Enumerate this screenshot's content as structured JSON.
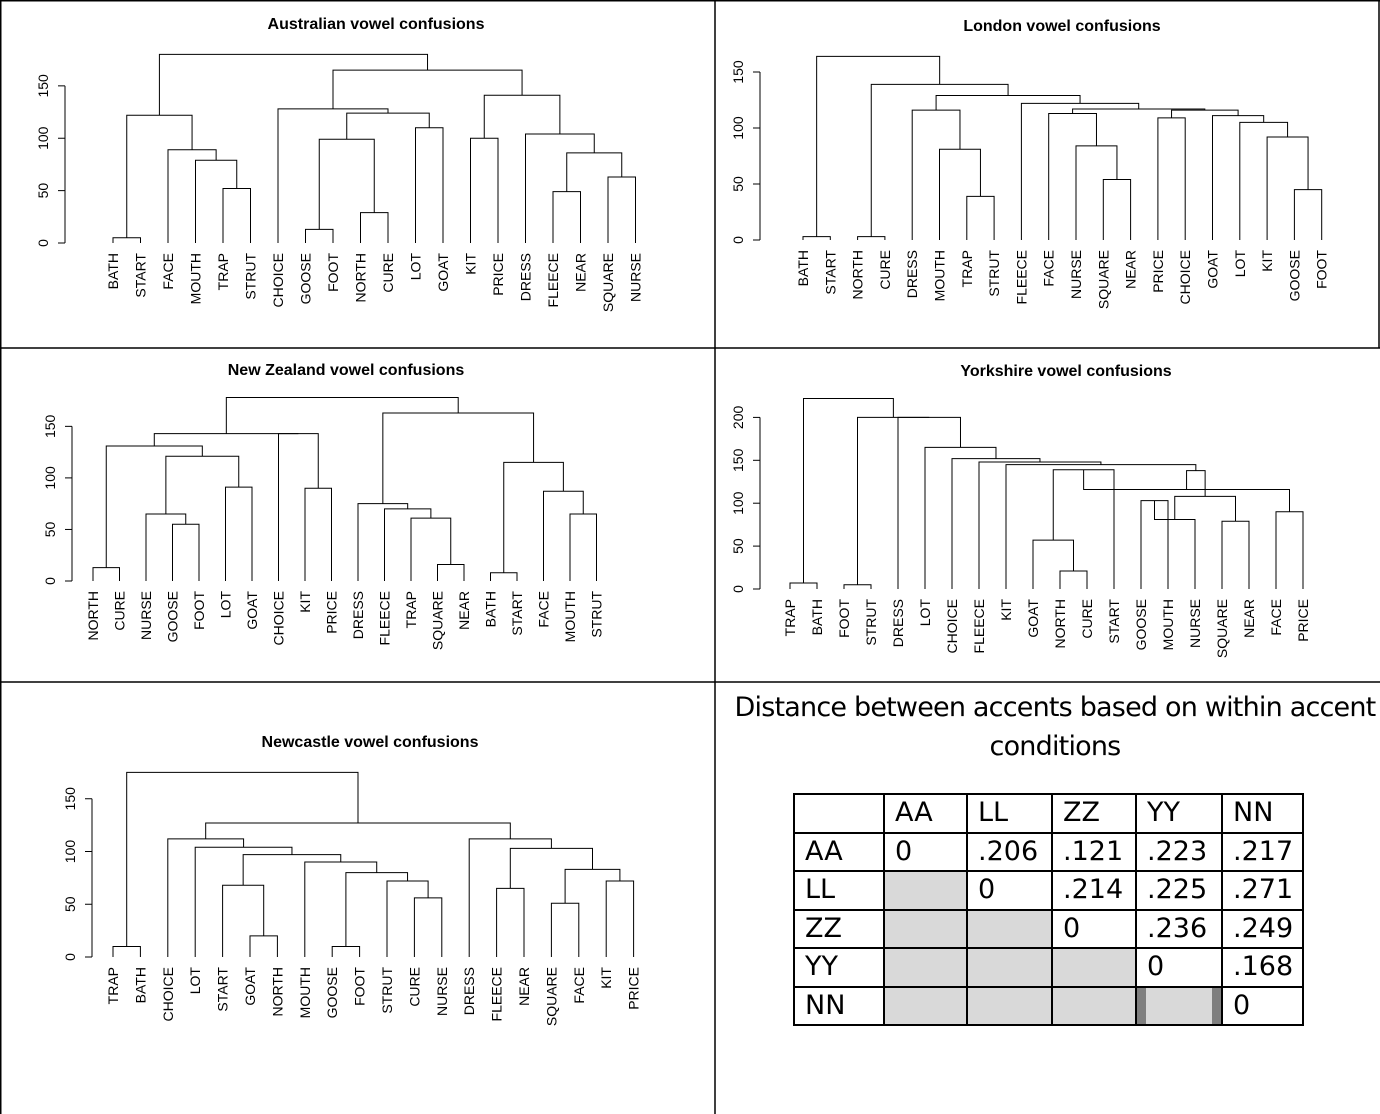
{
  "chart_data": [
    {
      "type": "dendrogram",
      "title": "Australian vowel confusions",
      "yticks": [
        0,
        50,
        100,
        150
      ],
      "ylim": [
        0,
        180
      ],
      "leaves": [
        "BATH",
        "START",
        "FACE",
        "MOUTH",
        "TRAP",
        "STRUT",
        "CHOICE",
        "GOOSE",
        "FOOT",
        "NORTH",
        "CURE",
        "LOT",
        "GOAT",
        "KIT",
        "PRICE",
        "DRESS",
        "FLEECE",
        "NEAR",
        "SQUARE",
        "NURSE"
      ],
      "merges": [
        [
          0,
          1,
          5
        ],
        [
          4,
          5,
          52
        ],
        [
          3,
          21,
          79
        ],
        [
          2,
          22,
          89
        ],
        [
          20,
          23,
          122
        ],
        [
          7,
          8,
          13
        ],
        [
          9,
          10,
          29
        ],
        [
          25,
          26,
          99
        ],
        [
          11,
          12,
          110
        ],
        [
          27,
          28,
          124
        ],
        [
          6,
          29,
          128
        ],
        [
          13,
          14,
          100
        ],
        [
          17,
          16,
          49
        ],
        [
          18,
          19,
          63
        ],
        [
          32,
          33,
          86
        ],
        [
          15,
          34,
          104
        ],
        [
          31,
          35,
          141
        ],
        [
          30,
          36,
          165
        ],
        [
          24,
          37,
          180
        ]
      ]
    },
    {
      "type": "dendrogram",
      "title": "London vowel confusions",
      "yticks": [
        0,
        50,
        100,
        150
      ],
      "ylim": [
        0,
        165
      ],
      "leaves": [
        "BATH",
        "START",
        "NORTH",
        "CURE",
        "DRESS",
        "MOUTH",
        "TRAP",
        "STRUT",
        "FLEECE",
        "FACE",
        "NURSE",
        "SQUARE",
        "NEAR",
        "PRICE",
        "CHOICE",
        "GOAT",
        "LOT",
        "KIT",
        "GOOSE",
        "FOOT"
      ],
      "merges": [
        [
          0,
          1,
          3
        ],
        [
          2,
          3,
          3
        ],
        [
          6,
          7,
          39
        ],
        [
          5,
          22,
          81
        ],
        [
          4,
          23,
          116
        ],
        [
          11,
          12,
          54
        ],
        [
          10,
          25,
          84
        ],
        [
          9,
          26,
          113
        ],
        [
          18,
          19,
          45
        ],
        [
          17,
          28,
          92
        ],
        [
          16,
          29,
          105
        ],
        [
          15,
          30,
          111
        ],
        [
          13,
          14,
          109
        ],
        [
          32,
          31,
          116
        ],
        [
          27,
          33,
          117
        ],
        [
          34,
          8,
          122
        ],
        [
          24,
          35,
          129
        ],
        [
          21,
          36,
          139
        ],
        [
          20,
          37,
          164
        ]
      ]
    },
    {
      "type": "dendrogram",
      "title": "New Zealand vowel confusions",
      "yticks": [
        0,
        50,
        100,
        150
      ],
      "ylim": [
        0,
        180
      ],
      "leaves": [
        "NORTH",
        "CURE",
        "NURSE",
        "GOOSE",
        "FOOT",
        "LOT",
        "GOAT",
        "CHOICE",
        "KIT",
        "PRICE",
        "DRESS",
        "FLEECE",
        "TRAP",
        "SQUARE",
        "NEAR",
        "BATH",
        "START",
        "FACE",
        "MOUTH",
        "STRUT"
      ],
      "merges": [
        [
          0,
          1,
          13
        ],
        [
          3,
          4,
          55
        ],
        [
          2,
          21,
          65
        ],
        [
          5,
          6,
          91
        ],
        [
          22,
          23,
          121
        ],
        [
          20,
          24,
          131
        ],
        [
          8,
          9,
          90
        ],
        [
          7,
          26,
          143
        ],
        [
          25,
          27,
          143
        ],
        [
          13,
          14,
          16
        ],
        [
          12,
          29,
          61
        ],
        [
          11,
          30,
          70
        ],
        [
          10,
          31,
          75
        ],
        [
          15,
          16,
          8
        ],
        [
          18,
          19,
          65
        ],
        [
          17,
          34,
          87
        ],
        [
          33,
          35,
          115
        ],
        [
          32,
          36,
          163
        ],
        [
          28,
          37,
          178
        ]
      ]
    },
    {
      "type": "dendrogram",
      "title": "Yorkshire vowel confusions",
      "yticks": [
        0,
        50,
        100,
        150,
        200
      ],
      "ylim": [
        0,
        225
      ],
      "leaves": [
        "TRAP",
        "BATH",
        "FOOT",
        "STRUT",
        "DRESS",
        "LOT",
        "CHOICE",
        "FLEECE",
        "KIT",
        "GOAT",
        "NORTH",
        "CURE",
        "START",
        "GOOSE",
        "MOUTH",
        "NURSE",
        "SQUARE",
        "NEAR",
        "FACE",
        "PRICE"
      ],
      "merges": [
        [
          0,
          1,
          7
        ],
        [
          2,
          3,
          5
        ],
        [
          10,
          11,
          21
        ],
        [
          9,
          22,
          57
        ],
        [
          23,
          12,
          139
        ],
        [
          13,
          14,
          103
        ],
        [
          16,
          17,
          79
        ],
        [
          15,
          25,
          81
        ],
        [
          18,
          19,
          90
        ],
        [
          26,
          27,
          108
        ],
        [
          24,
          28,
          116
        ],
        [
          29,
          30,
          138
        ],
        [
          31,
          8,
          145
        ],
        [
          32,
          7,
          148
        ],
        [
          33,
          6,
          152
        ],
        [
          34,
          5,
          165
        ],
        [
          35,
          4,
          200
        ],
        [
          21,
          36,
          200
        ],
        [
          20,
          37,
          222
        ]
      ]
    },
    {
      "type": "dendrogram",
      "title": "Newcastle vowel confusions",
      "yticks": [
        0,
        50,
        100,
        150
      ],
      "ylim": [
        0,
        180
      ],
      "leaves": [
        "TRAP",
        "BATH",
        "CHOICE",
        "LOT",
        "START",
        "GOAT",
        "NORTH",
        "MOUTH",
        "GOOSE",
        "FOOT",
        "STRUT",
        "CURE",
        "NURSE",
        "DRESS",
        "FLEECE",
        "NEAR",
        "SQUARE",
        "FACE",
        "KIT",
        "PRICE"
      ],
      "merges": [
        [
          0,
          1,
          10
        ],
        [
          5,
          6,
          20
        ],
        [
          4,
          21,
          68
        ],
        [
          8,
          9,
          10
        ],
        [
          11,
          12,
          56
        ],
        [
          10,
          24,
          72
        ],
        [
          23,
          25,
          80
        ],
        [
          7,
          26,
          90
        ],
        [
          22,
          27,
          97
        ],
        [
          3,
          28,
          104
        ],
        [
          2,
          29,
          112
        ],
        [
          14,
          15,
          65
        ],
        [
          16,
          17,
          51
        ],
        [
          18,
          19,
          72
        ],
        [
          32,
          33,
          83
        ],
        [
          31,
          34,
          103
        ],
        [
          13,
          35,
          112
        ],
        [
          30,
          36,
          127
        ],
        [
          20,
          37,
          175
        ]
      ]
    }
  ],
  "table": {
    "title": "Distance between accents based on within accent conditions",
    "columns": [
      "",
      "AA",
      "LL",
      "ZZ",
      "YY",
      "NN"
    ],
    "rows": [
      [
        "AA",
        "0",
        ".206",
        ".121",
        ".223",
        ".217"
      ],
      [
        "LL",
        "",
        "0",
        ".214",
        ".225",
        ".271"
      ],
      [
        "ZZ",
        "",
        "",
        "0",
        ".236",
        ".249"
      ],
      [
        "YY",
        "",
        "",
        "",
        "0",
        ".168"
      ],
      [
        "NN",
        "",
        "",
        "",
        "",
        "0"
      ]
    ]
  }
}
